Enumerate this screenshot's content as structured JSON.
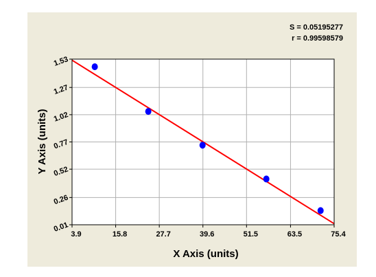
{
  "chart_data": {
    "type": "scatter",
    "x_label": "X Axis (units)",
    "y_label": "Y Axis (units)",
    "annotations": [
      "S = 0.05195277",
      "r = 0.99598579"
    ],
    "series": [
      {
        "color": "#0000ff",
        "x": [
          10.1,
          24.7,
          39.5,
          56.9,
          71.7
        ],
        "values": [
          1.46,
          1.05,
          0.74,
          0.43,
          0.14
        ]
      }
    ],
    "fit_line": {
      "color": "#ff0000",
      "x": [
        3.9,
        75.4
      ],
      "values": [
        1.52,
        0.02
      ]
    },
    "xlim": [
      3.9,
      75.4
    ],
    "xticks": [
      3.9,
      15.8,
      27.7,
      39.6,
      51.5,
      63.5,
      75.4
    ],
    "ylim": [
      0.01,
      1.53
    ],
    "yticks": [
      0.01,
      0.26,
      0.52,
      0.77,
      1.02,
      1.27,
      1.53
    ],
    "grid": true
  }
}
